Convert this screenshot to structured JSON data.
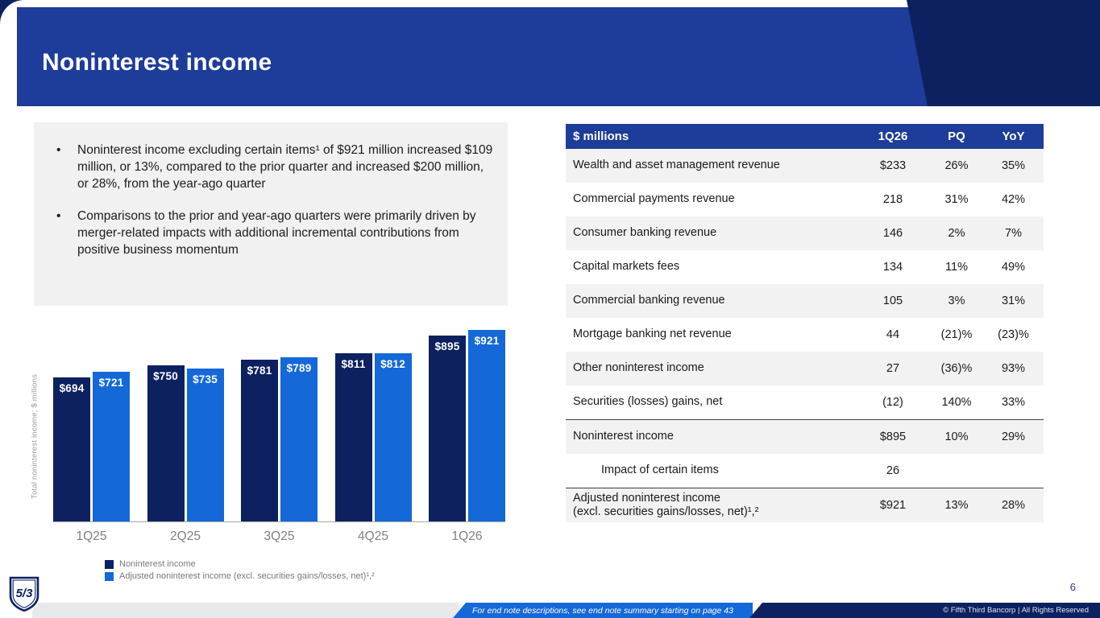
{
  "header": {
    "title": "Noninterest income"
  },
  "bullets": [
    "Noninterest income excluding certain items¹ of $921 million increased $109 million, or 13%, compared to the prior quarter and increased $200 million, or 28%, from the year-ago quarter",
    "Comparisons to the prior and year-ago quarters were primarily driven by merger-related impacts with additional incremental contributions from positive business momentum"
  ],
  "chart_data": {
    "type": "bar",
    "categories": [
      "1Q25",
      "2Q25",
      "3Q25",
      "4Q25",
      "1Q26"
    ],
    "series": [
      {
        "name": "Noninterest income",
        "color": "#0d2161",
        "values": [
          694,
          750,
          781,
          811,
          895
        ]
      },
      {
        "name": "Adjusted noninterest income (excl. securities gains/losses, net)¹,²",
        "color": "#1568d8",
        "values": [
          721,
          735,
          789,
          812,
          921
        ]
      }
    ],
    "ylabel": "Total noninterest income; $ millions",
    "ylim": [
      0,
      950
    ],
    "grid": false,
    "legend_position": "bottom-left",
    "value_label_prefix": "$"
  },
  "table": {
    "headers": [
      "$ millions",
      "1Q26",
      "PQ",
      "YoY"
    ],
    "rows": [
      {
        "label": "Wealth and asset management revenue",
        "values": [
          "$233",
          "26%",
          "35%"
        ]
      },
      {
        "label": "Commercial payments revenue",
        "values": [
          "218",
          "31%",
          "42%"
        ]
      },
      {
        "label": "Consumer banking revenue",
        "values": [
          "146",
          "2%",
          "7%"
        ]
      },
      {
        "label": "Capital markets fees",
        "values": [
          "134",
          "11%",
          "49%"
        ]
      },
      {
        "label": "Commercial banking revenue",
        "values": [
          "105",
          "3%",
          "31%"
        ]
      },
      {
        "label": "Mortgage banking net revenue",
        "values": [
          "44",
          "(21)%",
          "(23)%"
        ]
      },
      {
        "label": "Other noninterest income",
        "values": [
          "27",
          "(36)%",
          "93%"
        ]
      },
      {
        "label": "Securities (losses) gains, net",
        "values": [
          "(12)",
          "140%",
          "33%"
        ]
      },
      {
        "label": "Noninterest income",
        "values": [
          "$895",
          "10%",
          "29%"
        ],
        "border_top": true
      },
      {
        "label": "Impact of certain items",
        "indent": true,
        "values": [
          "26",
          "",
          ""
        ]
      },
      {
        "label": "Adjusted noninterest income\n(excl. securities gains/losses, net)¹,²",
        "values": [
          "$921",
          "13%",
          "28%"
        ],
        "border_top": true
      }
    ]
  },
  "footer": {
    "page_number": "6",
    "endnote": "For end note descriptions, see end note summary starting on page 43",
    "copyright": "© Fifth Third Bancorp | All Rights Reserved",
    "logo_text": "5/3"
  },
  "colors": {
    "header_blue": "#1e3c99",
    "navy": "#0d2161",
    "accent_blue": "#1568d8",
    "box_gray": "#f1f1f2",
    "row_gray": "#f2f2f3"
  }
}
